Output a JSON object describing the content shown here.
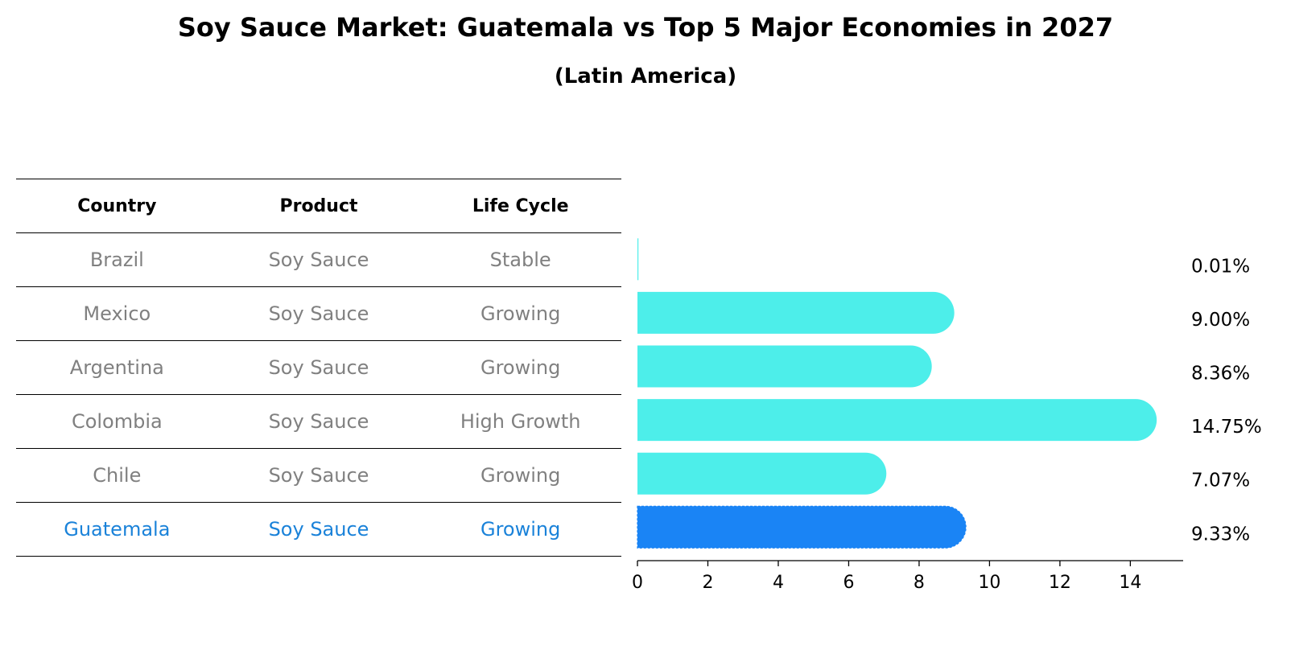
{
  "title": "Soy Sauce Market: Guatemala vs Top 5 Major Economies in 2027",
  "subtitle": "(Latin America)",
  "table": {
    "headers": [
      "Country",
      "Product",
      "Life Cycle"
    ],
    "rows": [
      {
        "country": "Brazil",
        "product": "Soy Sauce",
        "lifecycle": "Stable"
      },
      {
        "country": "Mexico",
        "product": "Soy Sauce",
        "lifecycle": "Growing"
      },
      {
        "country": "Argentina",
        "product": "Soy Sauce",
        "lifecycle": "Growing"
      },
      {
        "country": "Colombia",
        "product": "Soy Sauce",
        "lifecycle": "High Growth"
      },
      {
        "country": "Chile",
        "product": "Soy Sauce",
        "lifecycle": "Growing"
      },
      {
        "country": "Guatemala",
        "product": "Soy Sauce",
        "lifecycle": "Growing"
      }
    ]
  },
  "chart_data": {
    "type": "bar",
    "orientation": "horizontal",
    "categories": [
      "Brazil",
      "Mexico",
      "Argentina",
      "Colombia",
      "Chile",
      "Guatemala"
    ],
    "values": [
      0.01,
      9.0,
      8.36,
      14.75,
      7.07,
      9.33
    ],
    "value_labels": [
      "0.01%",
      "9.00%",
      "8.36%",
      "14.75%",
      "7.07%",
      "9.33%"
    ],
    "highlight": "Guatemala",
    "xlim": [
      0,
      15.5
    ],
    "xticks": [
      0,
      2,
      4,
      6,
      8,
      10,
      12,
      14
    ],
    "grid": false,
    "colors": {
      "default": "#4deeea",
      "highlight": "#1a84f5",
      "table_highlight_text": "#1a82d9",
      "table_text": "#808080"
    }
  }
}
